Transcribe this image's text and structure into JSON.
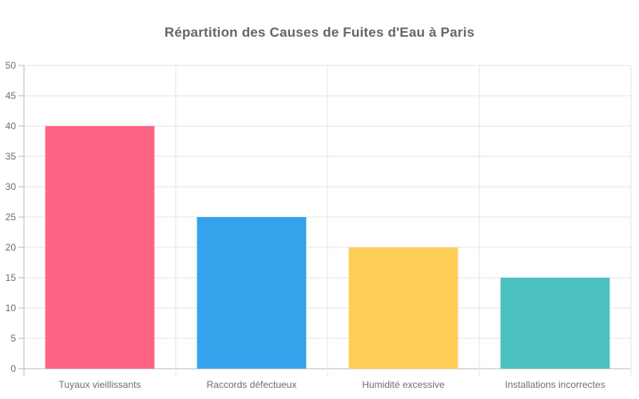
{
  "chart_data": {
    "type": "bar",
    "title": "Répartition des Causes de Fuites d'Eau à Paris",
    "categories": [
      "Tuyaux vieillissants",
      "Raccords défectueux",
      "Humidité excessive",
      "Installations incorrectes"
    ],
    "values": [
      40,
      25,
      20,
      15
    ],
    "bar_colors": [
      "#FF6384",
      "#36A2EB",
      "#FFCE56",
      "#4BC0C0"
    ],
    "xlabel": "",
    "ylabel": "",
    "ylim": [
      0,
      50
    ],
    "ytick_step": 5,
    "ytick_labels": [
      "0",
      "5",
      "10",
      "15",
      "20",
      "25",
      "30",
      "35",
      "40",
      "45",
      "50"
    ],
    "grid": true,
    "legend": false,
    "grid_color": "#e5e5e5",
    "axis_color": "#b8b8b8",
    "tick_label_color": "#6e6e6e",
    "title_color": "#666666",
    "background_color": "#ffffff"
  }
}
